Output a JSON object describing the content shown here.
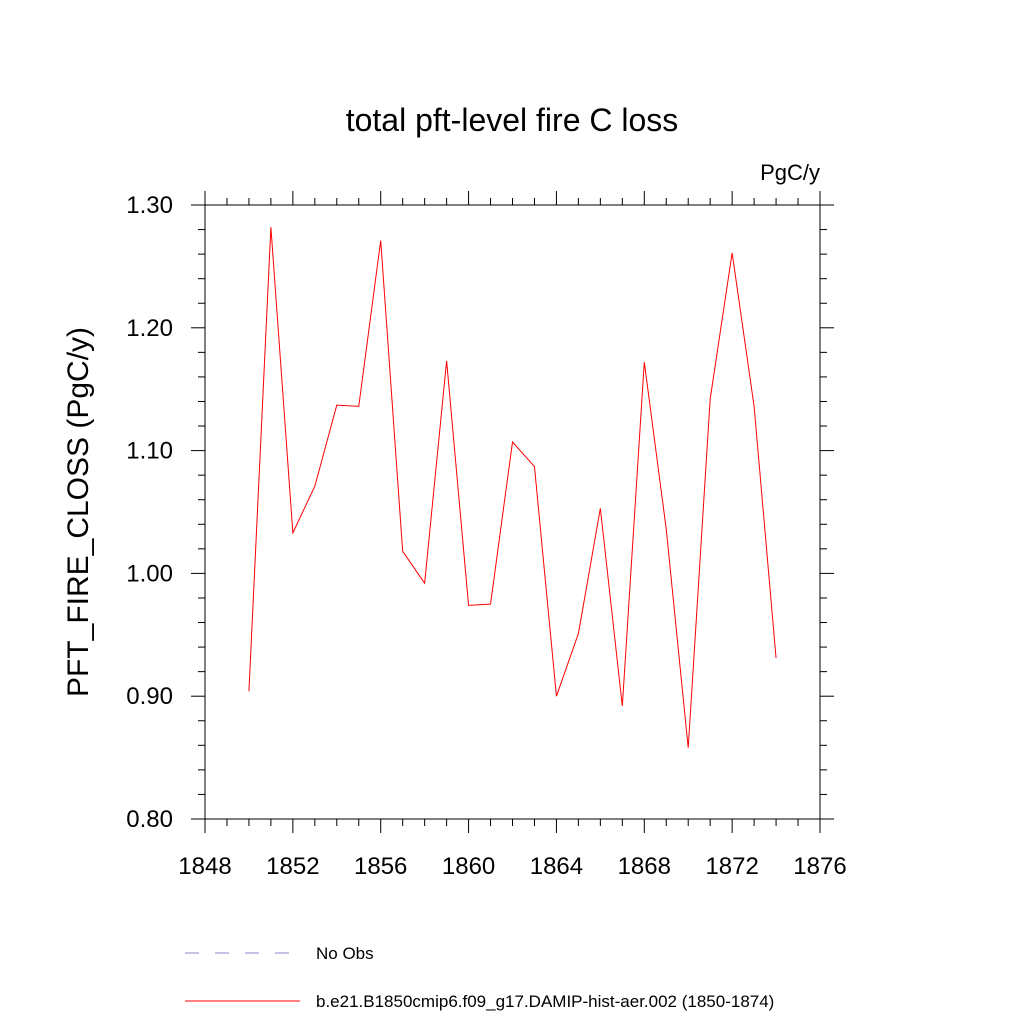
{
  "chart_data": {
    "type": "line",
    "title": "total pft-level fire C loss",
    "units": "PgC/y",
    "ylabel": "PFT_FIRE_CLOSS  (PgC/y)",
    "xlabel": "",
    "xlim": [
      1848,
      1876
    ],
    "ylim": [
      0.8,
      1.3
    ],
    "x_ticks": [
      "1848",
      "1852",
      "1856",
      "1860",
      "1864",
      "1868",
      "1872",
      "1876"
    ],
    "y_ticks": [
      "0.80",
      "0.90",
      "1.00",
      "1.10",
      "1.20",
      "1.30"
    ],
    "grid": false,
    "legend_position": "bottom",
    "series": [
      {
        "name": "b.e21.B1850cmip6.f09_g17.DAMIP-hist-aer.002 (1850-1874)",
        "color": "#ff0000",
        "style": "solid",
        "x": [
          1850,
          1851,
          1852,
          1853,
          1854,
          1855,
          1856,
          1857,
          1858,
          1859,
          1860,
          1861,
          1862,
          1863,
          1864,
          1865,
          1866,
          1867,
          1868,
          1869,
          1870,
          1871,
          1872,
          1873,
          1874
        ],
        "values": [
          0.904,
          1.282,
          1.033,
          1.071,
          1.137,
          1.136,
          1.271,
          1.018,
          0.992,
          1.173,
          0.974,
          0.975,
          1.107,
          1.087,
          0.9,
          0.951,
          1.053,
          0.892,
          1.172,
          1.036,
          0.858,
          1.142,
          1.261,
          1.136,
          0.931
        ]
      }
    ],
    "legend": [
      {
        "label": "No Obs",
        "color": "#8888cc",
        "style": "dashed"
      },
      {
        "label": "b.e21.B1850cmip6.f09_g17.DAMIP-hist-aer.002 (1850-1874)",
        "color": "#ff0000",
        "style": "solid"
      }
    ]
  }
}
